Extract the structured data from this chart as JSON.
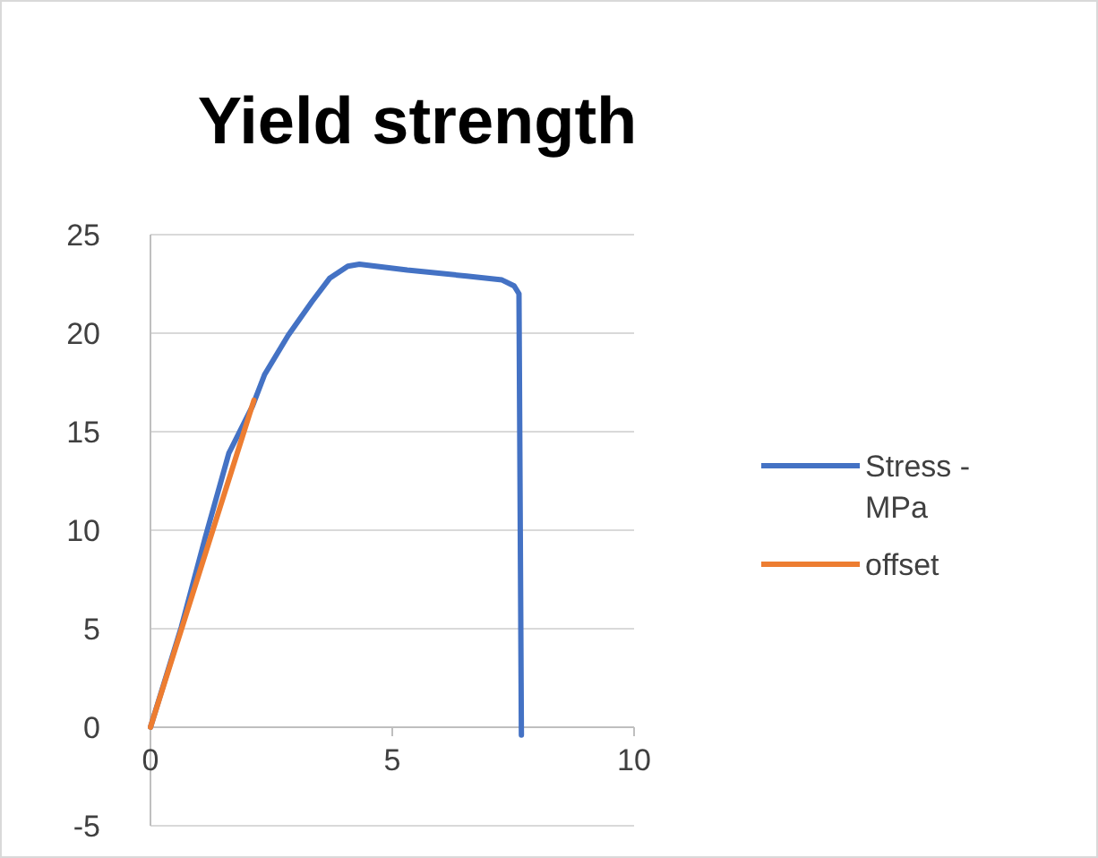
{
  "chart_data": {
    "type": "line",
    "title": "Yield strength",
    "xlim": [
      0,
      10
    ],
    "xticks": [
      0,
      5,
      10
    ],
    "ylim": [
      -5,
      25
    ],
    "yticks": [
      -5,
      0,
      5,
      10,
      15,
      20,
      25
    ],
    "grid": "y",
    "legend": "right",
    "marker": "none",
    "line_style": "solid",
    "series": [
      {
        "name": "Stress - MPa",
        "color": "#4472c4",
        "x": [
          0,
          0.64,
          1.13,
          1.62,
          2.11,
          2.36,
          2.85,
          3.34,
          3.71,
          4.08,
          4.32,
          5.31,
          6.54,
          7.27,
          7.52,
          7.62,
          7.67
        ],
        "values": [
          0,
          5.1,
          9.6,
          13.9,
          16.3,
          17.9,
          19.9,
          21.6,
          22.8,
          23.4,
          23.5,
          23.2,
          22.9,
          22.7,
          22.4,
          22,
          -0.4
        ]
      },
      {
        "name": "offset",
        "color": "#ed7d31",
        "x": [
          0,
          2.14
        ],
        "values": [
          0,
          16.6
        ]
      }
    ]
  }
}
